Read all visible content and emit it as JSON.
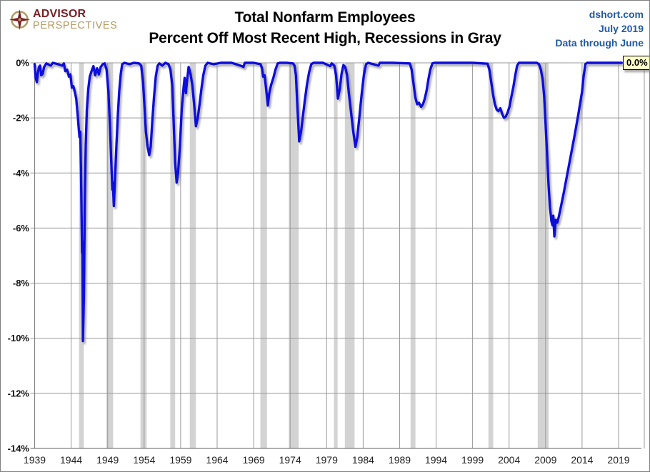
{
  "header": {
    "logo": {
      "line1": "ADVISOR",
      "line2": "PERSPECTIVES",
      "color_primary": "#7A1E24",
      "color_secondary": "#B29A64"
    },
    "title_line1": "Total Nonfarm Employees",
    "title_line2": "Percent Off Most Recent High, Recessions in Gray",
    "source": {
      "line1": "dshort.com",
      "line2": "July 2019",
      "line3": "Data through June",
      "color": "#1F5AA5"
    }
  },
  "chart_data": {
    "type": "line",
    "title": "Total Nonfarm Employees — Percent Off Most Recent High, Recessions in Gray",
    "series_name": "Percent off most recent employment high",
    "xlabel": "",
    "ylabel": "",
    "xlim": [
      1939,
      2022.5
    ],
    "ylim": [
      -14,
      0
    ],
    "grid": true,
    "line_color": "#0D0DDC",
    "recession_color": "#D3D3D3",
    "grid_color": "#999999",
    "axis_color": "#808080",
    "end_label": {
      "text": "0.0%",
      "bg": "#FFFFC9"
    },
    "x_ticks": [
      1939,
      1944,
      1949,
      1954,
      1959,
      1964,
      1969,
      1974,
      1979,
      1984,
      1989,
      1994,
      1999,
      2004,
      2009,
      2014,
      2019
    ],
    "y_ticks": [
      "0%",
      "-2%",
      "-4%",
      "-6%",
      "-8%",
      "-10%",
      "-12%",
      "-14%"
    ],
    "y_tick_values": [
      0,
      -2,
      -4,
      -6,
      -8,
      -10,
      -12,
      -14
    ],
    "recessions": [
      [
        1945.08,
        1945.75
      ],
      [
        1948.83,
        1949.75
      ],
      [
        1953.5,
        1954.33
      ],
      [
        1957.58,
        1958.25
      ],
      [
        1960.25,
        1961.08
      ],
      [
        1969.92,
        1970.83
      ],
      [
        1973.83,
        1975.17
      ],
      [
        1980.0,
        1980.5
      ],
      [
        1981.5,
        1982.83
      ],
      [
        1990.5,
        1991.17
      ],
      [
        2001.17,
        2001.83
      ],
      [
        2007.92,
        2009.42
      ]
    ],
    "points": [
      [
        1939.0,
        -0.05
      ],
      [
        1939.15,
        -0.55
      ],
      [
        1939.3,
        -0.7
      ],
      [
        1939.45,
        -0.35
      ],
      [
        1939.6,
        -0.15
      ],
      [
        1939.75,
        -0.1
      ],
      [
        1939.9,
        -0.45
      ],
      [
        1940.1,
        -0.4
      ],
      [
        1940.3,
        -0.15
      ],
      [
        1940.6,
        -0.02
      ],
      [
        1941.2,
        -0.1
      ],
      [
        1941.5,
        0
      ],
      [
        1942.2,
        -0.05
      ],
      [
        1942.8,
        -0.1
      ],
      [
        1943.0,
        -0.02
      ],
      [
        1943.2,
        -0.3
      ],
      [
        1943.45,
        -0.25
      ],
      [
        1943.7,
        -0.5
      ],
      [
        1943.9,
        -0.42
      ],
      [
        1944.1,
        -0.9
      ],
      [
        1944.3,
        -0.85
      ],
      [
        1944.5,
        -1.05
      ],
      [
        1944.7,
        -1.3
      ],
      [
        1944.9,
        -1.9
      ],
      [
        1945.05,
        -2.4
      ],
      [
        1945.15,
        -2.7
      ],
      [
        1945.25,
        -2.5
      ],
      [
        1945.35,
        -3.9
      ],
      [
        1945.45,
        -5.9
      ],
      [
        1945.5,
        -6.9
      ],
      [
        1945.55,
        -6.5
      ],
      [
        1945.62,
        -10.1
      ],
      [
        1945.75,
        -8.4
      ],
      [
        1945.88,
        -5.0
      ],
      [
        1946.0,
        -3.0
      ],
      [
        1946.15,
        -1.7
      ],
      [
        1946.35,
        -0.95
      ],
      [
        1946.55,
        -0.5
      ],
      [
        1946.8,
        -0.3
      ],
      [
        1947.05,
        -0.12
      ],
      [
        1947.3,
        -0.45
      ],
      [
        1947.55,
        -0.2
      ],
      [
        1947.8,
        -0.42
      ],
      [
        1948.05,
        -0.15
      ],
      [
        1948.35,
        -0.05
      ],
      [
        1948.6,
        -0.02
      ],
      [
        1948.85,
        -0.25
      ],
      [
        1949.1,
        -1.0
      ],
      [
        1949.3,
        -2.2
      ],
      [
        1949.5,
        -3.6
      ],
      [
        1949.65,
        -4.6
      ],
      [
        1949.72,
        -4.35
      ],
      [
        1949.85,
        -5.2
      ],
      [
        1950.0,
        -4.3
      ],
      [
        1950.2,
        -3.0
      ],
      [
        1950.4,
        -1.9
      ],
      [
        1950.6,
        -1.0
      ],
      [
        1950.8,
        -0.4
      ],
      [
        1951.0,
        -0.05
      ],
      [
        1951.3,
        0
      ],
      [
        1952.0,
        -0.05
      ],
      [
        1952.6,
        0
      ],
      [
        1953.3,
        -0.02
      ],
      [
        1953.6,
        -0.1
      ],
      [
        1953.85,
        -0.7
      ],
      [
        1954.05,
        -1.6
      ],
      [
        1954.25,
        -2.5
      ],
      [
        1954.45,
        -3.0
      ],
      [
        1954.7,
        -3.35
      ],
      [
        1954.9,
        -3.05
      ],
      [
        1955.1,
        -2.2
      ],
      [
        1955.35,
        -1.25
      ],
      [
        1955.6,
        -0.5
      ],
      [
        1955.85,
        -0.1
      ],
      [
        1956.1,
        -0.02
      ],
      [
        1956.5,
        -0.1
      ],
      [
        1956.9,
        0
      ],
      [
        1957.35,
        -0.05
      ],
      [
        1957.6,
        -0.25
      ],
      [
        1957.85,
        -0.8
      ],
      [
        1958.05,
        -2.2
      ],
      [
        1958.25,
        -3.6
      ],
      [
        1958.45,
        -4.35
      ],
      [
        1958.65,
        -4.0
      ],
      [
        1958.9,
        -3.0
      ],
      [
        1959.15,
        -1.7
      ],
      [
        1959.4,
        -0.9
      ],
      [
        1959.55,
        -0.55
      ],
      [
        1959.72,
        -1.1
      ],
      [
        1959.9,
        -0.6
      ],
      [
        1960.1,
        -0.15
      ],
      [
        1960.35,
        -0.4
      ],
      [
        1960.6,
        -0.8
      ],
      [
        1960.85,
        -1.5
      ],
      [
        1961.1,
        -2.3
      ],
      [
        1961.35,
        -2.0
      ],
      [
        1961.6,
        -1.5
      ],
      [
        1961.85,
        -0.95
      ],
      [
        1962.1,
        -0.45
      ],
      [
        1962.4,
        -0.1
      ],
      [
        1962.7,
        0
      ],
      [
        1963.5,
        -0.05
      ],
      [
        1964.5,
        0
      ],
      [
        1966.0,
        0
      ],
      [
        1967.4,
        -0.12
      ],
      [
        1967.6,
        -0.15
      ],
      [
        1967.8,
        0
      ],
      [
        1969.0,
        0
      ],
      [
        1969.95,
        -0.05
      ],
      [
        1970.15,
        -0.2
      ],
      [
        1970.3,
        -0.5
      ],
      [
        1970.5,
        -0.45
      ],
      [
        1970.7,
        -0.9
      ],
      [
        1970.95,
        -1.55
      ],
      [
        1971.15,
        -1.1
      ],
      [
        1971.4,
        -0.8
      ],
      [
        1971.7,
        -0.55
      ],
      [
        1972.0,
        -0.25
      ],
      [
        1972.3,
        -0.02
      ],
      [
        1972.6,
        0
      ],
      [
        1973.5,
        0
      ],
      [
        1974.4,
        -0.02
      ],
      [
        1974.6,
        -0.1
      ],
      [
        1974.8,
        -0.45
      ],
      [
        1975.0,
        -1.6
      ],
      [
        1975.25,
        -2.85
      ],
      [
        1975.5,
        -2.5
      ],
      [
        1975.75,
        -1.95
      ],
      [
        1976.0,
        -1.4
      ],
      [
        1976.3,
        -0.8
      ],
      [
        1976.6,
        -0.35
      ],
      [
        1976.9,
        -0.05
      ],
      [
        1977.2,
        0
      ],
      [
        1978.5,
        0
      ],
      [
        1979.5,
        -0.12
      ],
      [
        1979.7,
        -0.02
      ],
      [
        1980.05,
        -0.1
      ],
      [
        1980.3,
        -0.45
      ],
      [
        1980.55,
        -1.3
      ],
      [
        1980.8,
        -0.95
      ],
      [
        1981.05,
        -0.4
      ],
      [
        1981.3,
        -0.08
      ],
      [
        1981.55,
        -0.15
      ],
      [
        1981.8,
        -0.45
      ],
      [
        1982.05,
        -1.1
      ],
      [
        1982.35,
        -1.8
      ],
      [
        1982.65,
        -2.5
      ],
      [
        1982.95,
        -3.05
      ],
      [
        1983.2,
        -2.7
      ],
      [
        1983.5,
        -1.95
      ],
      [
        1983.8,
        -1.15
      ],
      [
        1984.1,
        -0.45
      ],
      [
        1984.4,
        -0.05
      ],
      [
        1984.7,
        0
      ],
      [
        1986.1,
        -0.1
      ],
      [
        1986.3,
        0
      ],
      [
        1988.0,
        0
      ],
      [
        1990.4,
        -0.02
      ],
      [
        1990.65,
        -0.25
      ],
      [
        1990.9,
        -0.75
      ],
      [
        1991.15,
        -1.25
      ],
      [
        1991.4,
        -1.5
      ],
      [
        1991.65,
        -1.45
      ],
      [
        1991.95,
        -1.6
      ],
      [
        1992.2,
        -1.5
      ],
      [
        1992.45,
        -1.3
      ],
      [
        1992.7,
        -1.0
      ],
      [
        1992.95,
        -0.6
      ],
      [
        1993.2,
        -0.25
      ],
      [
        1993.5,
        -0.02
      ],
      [
        1993.8,
        0
      ],
      [
        1995.5,
        0
      ],
      [
        1997.0,
        0
      ],
      [
        1999.0,
        0
      ],
      [
        2001.05,
        -0.03
      ],
      [
        2001.3,
        -0.25
      ],
      [
        2001.55,
        -0.7
      ],
      [
        2001.8,
        -1.15
      ],
      [
        2002.05,
        -1.5
      ],
      [
        2002.3,
        -1.7
      ],
      [
        2002.55,
        -1.75
      ],
      [
        2002.8,
        -1.65
      ],
      [
        2003.05,
        -1.85
      ],
      [
        2003.3,
        -2.0
      ],
      [
        2003.55,
        -1.95
      ],
      [
        2003.8,
        -1.8
      ],
      [
        2004.05,
        -1.6
      ],
      [
        2004.3,
        -1.25
      ],
      [
        2004.6,
        -0.85
      ],
      [
        2004.85,
        -0.45
      ],
      [
        2005.1,
        -0.1
      ],
      [
        2005.35,
        0
      ],
      [
        2006.5,
        0
      ],
      [
        2007.8,
        0
      ],
      [
        2008.1,
        -0.05
      ],
      [
        2008.35,
        -0.25
      ],
      [
        2008.6,
        -0.6
      ],
      [
        2008.8,
        -1.2
      ],
      [
        2009.0,
        -2.2
      ],
      [
        2009.2,
        -3.3
      ],
      [
        2009.4,
        -4.4
      ],
      [
        2009.6,
        -5.25
      ],
      [
        2009.8,
        -5.75
      ],
      [
        2009.95,
        -5.9
      ],
      [
        2010.05,
        -5.55
      ],
      [
        2010.2,
        -6.3
      ],
      [
        2010.4,
        -5.7
      ],
      [
        2010.6,
        -5.8
      ],
      [
        2010.8,
        -5.6
      ],
      [
        2011.0,
        -5.35
      ],
      [
        2011.5,
        -4.7
      ],
      [
        2012.0,
        -4.0
      ],
      [
        2012.5,
        -3.3
      ],
      [
        2013.0,
        -2.6
      ],
      [
        2013.5,
        -1.85
      ],
      [
        2014.0,
        -1.05
      ],
      [
        2014.2,
        -0.5
      ],
      [
        2014.45,
        -0.05
      ],
      [
        2014.7,
        0
      ],
      [
        2016.0,
        0
      ],
      [
        2018.0,
        0
      ],
      [
        2019.42,
        0
      ]
    ]
  }
}
